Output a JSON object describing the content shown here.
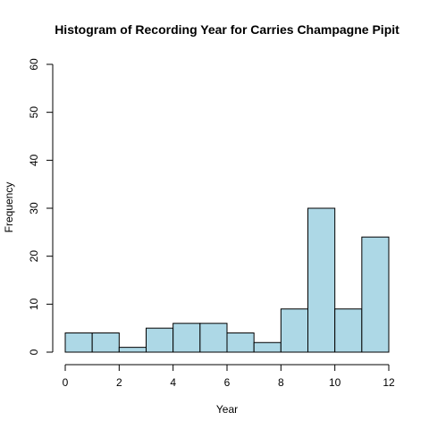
{
  "chart_data": {
    "type": "bar",
    "title": "Histogram of Recording Year for Carries Champagne Pipit",
    "xlabel": "Year",
    "ylabel": "Frequency",
    "bin_edges": [
      0,
      1,
      2,
      3,
      4,
      5,
      6,
      7,
      8,
      9,
      10,
      11,
      12
    ],
    "values": [
      4,
      4,
      1,
      5,
      6,
      6,
      4,
      2,
      9,
      30,
      9,
      24
    ],
    "xlim": [
      0,
      12
    ],
    "ylim": [
      0,
      60
    ],
    "xticks": [
      0,
      2,
      4,
      6,
      8,
      10,
      12
    ],
    "yticks": [
      0,
      10,
      20,
      30,
      40,
      50,
      60
    ],
    "bar_color": "#add8e6",
    "grid": false,
    "legend": "none"
  }
}
